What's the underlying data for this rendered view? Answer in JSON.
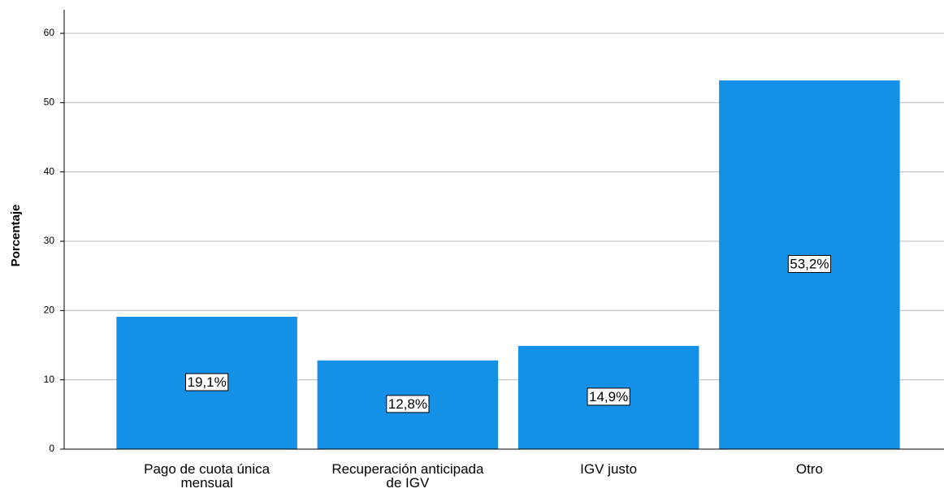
{
  "chart_data": {
    "type": "bar",
    "y_label": "Porcentaje",
    "categories": [
      "Pago de cuota única mensual",
      "Recuperación anticipada de IGV",
      "IGV justo",
      "Otro"
    ],
    "values": [
      19.1,
      12.8,
      14.9,
      53.2
    ],
    "value_labels": [
      "19,1%",
      "12,8%",
      "14,9%",
      "53,2%"
    ],
    "color": "#1491e6",
    "ylim": [
      0,
      63.4
    ],
    "yticks": [
      0,
      10,
      20,
      30,
      40,
      50,
      60
    ],
    "grid": true
  }
}
